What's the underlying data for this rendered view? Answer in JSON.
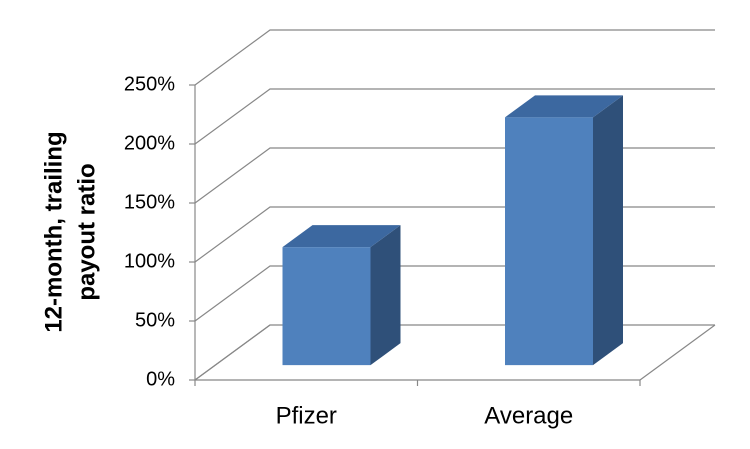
{
  "chart_data": {
    "type": "bar3d",
    "ylabel": [
      "12-month, trailing",
      "payout ratio"
    ],
    "categories": [
      "Pfizer",
      "Average"
    ],
    "values": [
      100,
      210
    ],
    "color": "#4f81bd",
    "ylim": [
      0,
      250
    ],
    "yticks": [
      {
        "value": 0,
        "label": "0%"
      },
      {
        "value": 50,
        "label": "50%"
      },
      {
        "value": 100,
        "label": "100%"
      },
      {
        "value": 150,
        "label": "150%"
      },
      {
        "value": 200,
        "label": "200%"
      },
      {
        "value": 250,
        "label": "250%"
      }
    ],
    "grid": true
  }
}
